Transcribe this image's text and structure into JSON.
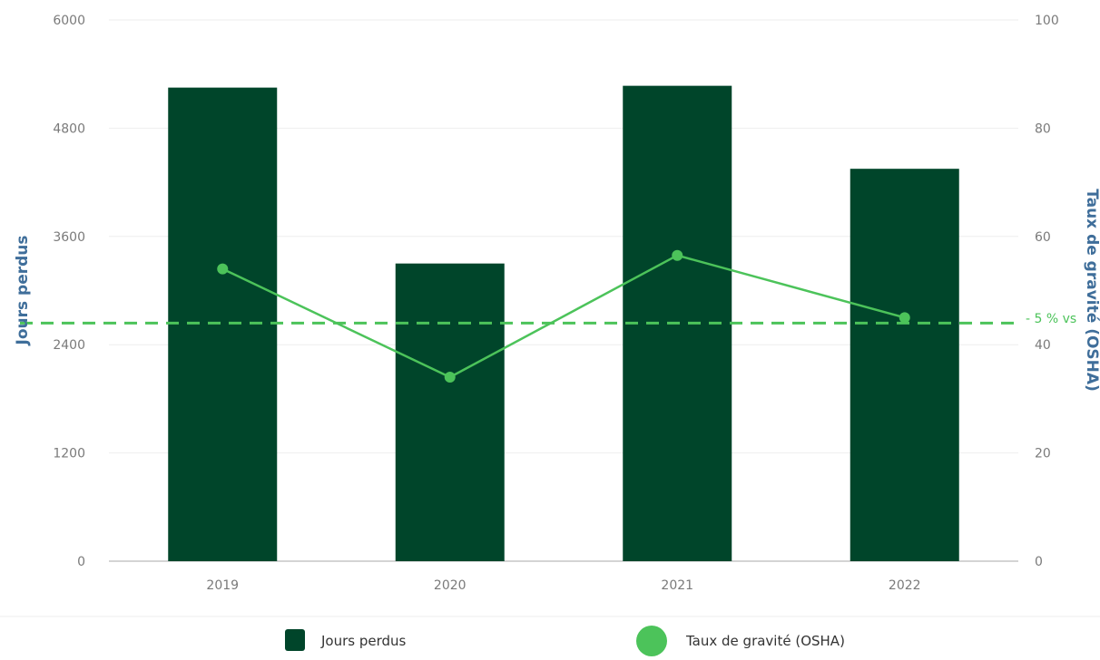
{
  "chart_data": {
    "type": "bar",
    "categories": [
      "2019",
      "2020",
      "2021",
      "2022"
    ],
    "series": [
      {
        "name": "Jours perdus",
        "type": "bar",
        "axis": "left",
        "color": "#00452a",
        "values": [
          5250,
          3300,
          5270,
          4350
        ]
      },
      {
        "name": "Taux de gravité (OSHA)",
        "type": "line",
        "axis": "right",
        "color": "#4cc35a",
        "values": [
          54,
          34,
          56.5,
          45
        ]
      }
    ],
    "y_left": {
      "label": "Jours perdus",
      "ylim": [
        0,
        6000
      ],
      "ticks": [
        "0",
        "1200",
        "2400",
        "3600",
        "4800",
        "6000"
      ]
    },
    "y_right": {
      "label": "Taux de gravité (OSHA)",
      "ylim": [
        0,
        100
      ],
      "ticks": [
        "0",
        "20",
        "40",
        "60",
        "80",
        "100"
      ]
    },
    "reference_line": {
      "axis": "right",
      "value": 44,
      "label": "- 5 % vs",
      "style": "dashed",
      "color": "#4cc35a"
    },
    "grid": true,
    "legend": {
      "position": "bottom",
      "entries": [
        "Jours perdus",
        "Taux de gravité (OSHA)"
      ]
    }
  }
}
